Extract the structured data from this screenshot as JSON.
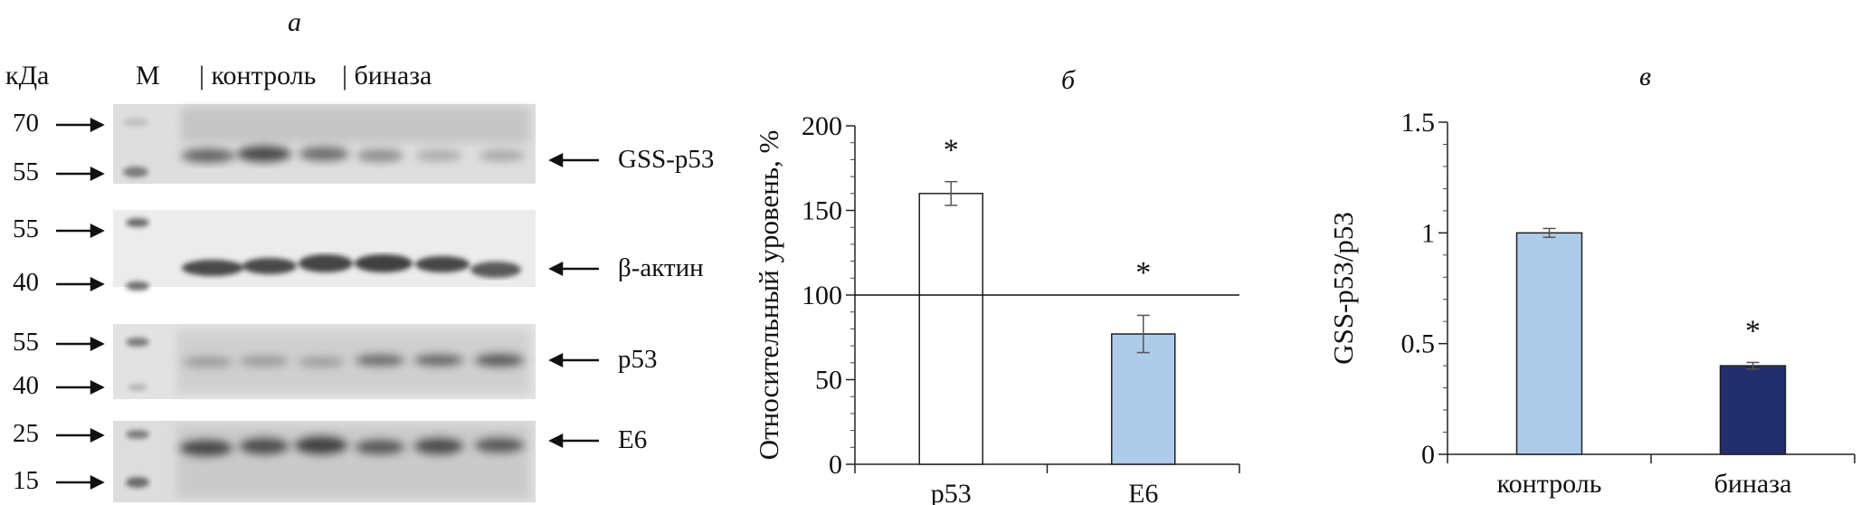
{
  "panels": {
    "a": "a",
    "b": "б",
    "c": "в"
  },
  "blot": {
    "kda_label": "кДа",
    "marker_label": "M",
    "lane_groups": [
      "| контроль",
      "| биназа"
    ],
    "rows": [
      {
        "protein": "GSS-p53",
        "markers": [
          "70",
          "55"
        ]
      },
      {
        "protein": "β-актин",
        "markers": [
          "55",
          "40"
        ]
      },
      {
        "protein": "p53",
        "markers": [
          "55",
          "40"
        ]
      },
      {
        "protein": "E6",
        "markers": [
          "25",
          "15"
        ]
      }
    ]
  },
  "chart_data": [
    {
      "type": "bar",
      "panel": "б",
      "ylabel": "Относительный уровень, %",
      "xlabel": "",
      "categories": [
        "p53",
        "E6"
      ],
      "values": [
        160,
        77
      ],
      "errors": [
        7,
        11
      ],
      "colors": [
        "#ffffff",
        "#aecbea"
      ],
      "significance": [
        "*",
        "*"
      ],
      "reference_line": 100,
      "ylim": [
        0,
        200
      ],
      "yticks": [
        "0",
        "50",
        "100",
        "150",
        "200"
      ]
    },
    {
      "type": "bar",
      "panel": "в",
      "ylabel": "GSS-p53/p53",
      "xlabel": "",
      "categories": [
        "контроль",
        "биназа"
      ],
      "values": [
        1.0,
        0.4
      ],
      "errors": [
        0.02,
        0.015
      ],
      "colors": [
        "#aecbea",
        "#232e6c"
      ],
      "significance": [
        "",
        "*"
      ],
      "ylim": [
        0,
        1.5
      ],
      "yticks": [
        "0",
        "0.5",
        "1",
        "1.5"
      ]
    }
  ]
}
